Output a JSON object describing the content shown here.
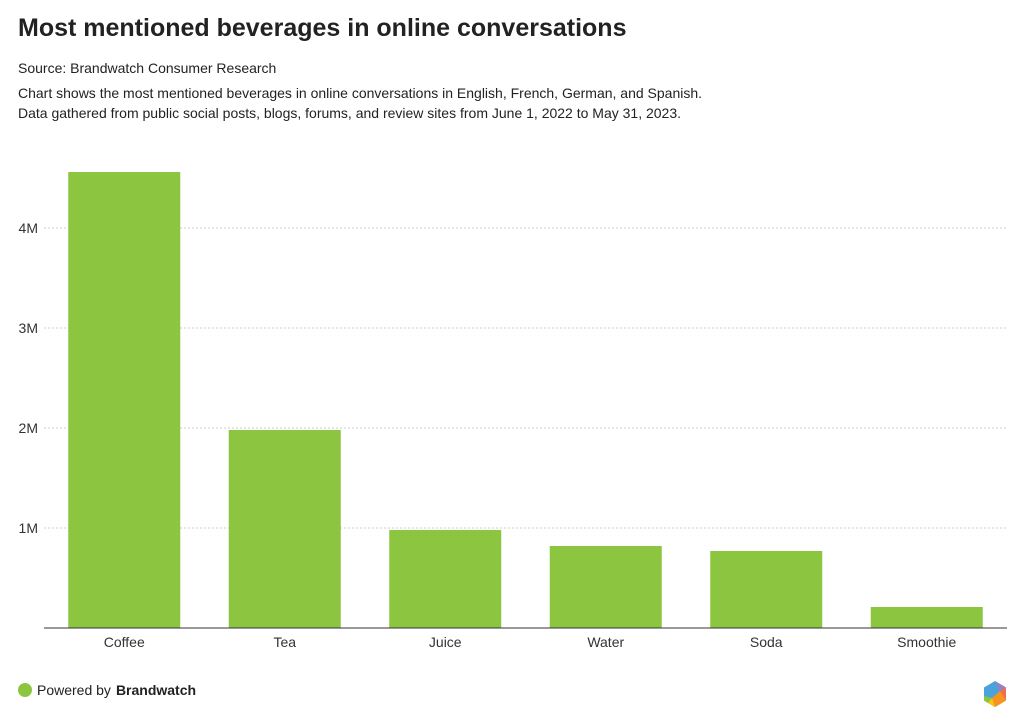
{
  "title": "Most mentioned beverages in online conversations",
  "source": "Source: Brandwatch Consumer Research",
  "description": [
    "Chart shows the most mentioned beverages in online conversations in English, French, German, and Spanish.",
    "Data gathered from public social posts, blogs, forums, and review sites from June 1, 2022 to May 31, 2023."
  ],
  "footer": {
    "prefix": "Powered by ",
    "brand": "Brandwatch",
    "logo_icon": "brandwatch-hexagon-logo"
  },
  "colors": {
    "bar": "#8cc540",
    "grid": "#cccccc",
    "text": "#222222"
  },
  "chart_data": {
    "type": "bar",
    "categories": [
      "Coffee",
      "Tea",
      "Juice",
      "Water",
      "Soda",
      "Smoothie"
    ],
    "values": [
      4560000,
      1980000,
      980000,
      820000,
      770000,
      210000
    ],
    "ylim": [
      0,
      4700000
    ],
    "yticks": [
      1000000,
      2000000,
      3000000,
      4000000
    ],
    "ytick_labels": [
      "1M",
      "2M",
      "3M",
      "4M"
    ],
    "grid": true,
    "xlabel": "",
    "ylabel": ""
  }
}
